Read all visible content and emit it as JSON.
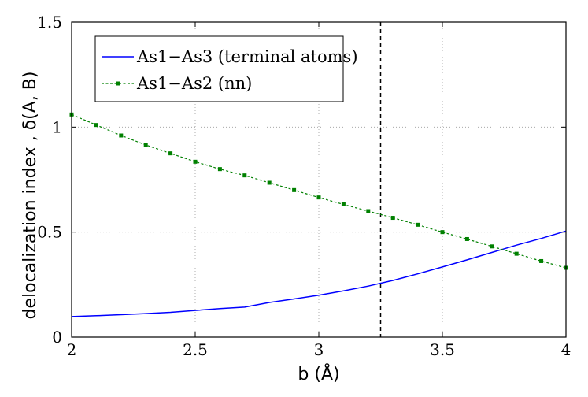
{
  "chart_data": {
    "type": "line",
    "xlabel": "b (Å)",
    "ylabel": "delocalization index ,  δ(A, B)",
    "xlim": [
      2,
      4
    ],
    "ylim": [
      0,
      1.5
    ],
    "x_ticks": [
      "2",
      "2.5",
      "3",
      "3.5",
      "4"
    ],
    "y_ticks": [
      "0",
      "0.5",
      "1",
      "1.5"
    ],
    "grid": "dotted",
    "legend_position": "top-left",
    "vertical_line": {
      "x": 3.25,
      "style": "dashed",
      "color": "#000000"
    },
    "series": [
      {
        "name": "As1−As3 (terminal atoms)",
        "color": "#0000ff",
        "style": "solid",
        "marker": "none",
        "x": [
          2.0,
          2.1,
          2.2,
          2.3,
          2.4,
          2.5,
          2.6,
          2.7,
          2.8,
          2.9,
          3.0,
          3.1,
          3.2,
          3.3,
          3.4,
          3.5,
          3.6,
          3.7,
          3.8,
          3.9,
          4.0
        ],
        "y": [
          0.098,
          0.102,
          0.107,
          0.112,
          0.118,
          0.127,
          0.136,
          0.143,
          0.165,
          0.182,
          0.2,
          0.22,
          0.243,
          0.27,
          0.301,
          0.334,
          0.368,
          0.403,
          0.438,
          0.47,
          0.505
        ]
      },
      {
        "name": "As1−As2 (nn)",
        "color": "#008000",
        "style": "dashed",
        "marker": "square",
        "x": [
          2.0,
          2.1,
          2.2,
          2.3,
          2.4,
          2.5,
          2.6,
          2.7,
          2.8,
          2.9,
          3.0,
          3.1,
          3.2,
          3.3,
          3.4,
          3.5,
          3.6,
          3.7,
          3.8,
          3.9,
          4.0
        ],
        "y": [
          1.06,
          1.01,
          0.96,
          0.915,
          0.875,
          0.835,
          0.8,
          0.77,
          0.735,
          0.7,
          0.665,
          0.632,
          0.6,
          0.568,
          0.535,
          0.5,
          0.467,
          0.432,
          0.397,
          0.362,
          0.33
        ]
      }
    ]
  }
}
